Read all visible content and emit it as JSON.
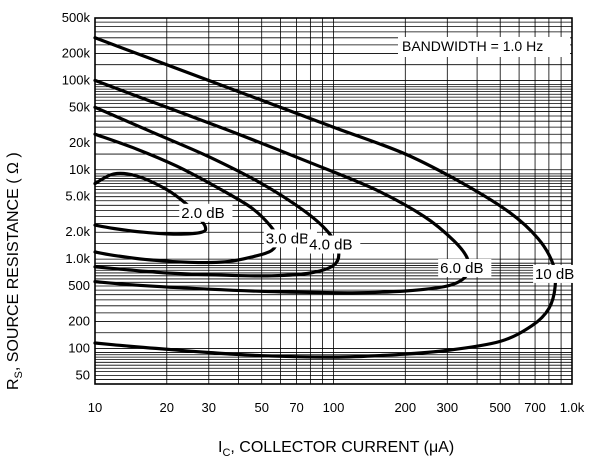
{
  "chart_data": {
    "type": "line",
    "x_scale": "log",
    "y_scale": "log",
    "xlim": [
      10,
      1000
    ],
    "ylim": [
      40,
      500000
    ],
    "grid": true,
    "annotation": "BANDWIDTH = 1.0 Hz",
    "xlabel_main": "I",
    "xlabel_sub": "C",
    "xlabel_rest": ", COLLECTOR CURRENT (μA)",
    "ylabel_main": "R",
    "ylabel_sub": "S",
    "ylabel_rest": ", SOURCE RESISTANCE ( Ω )",
    "x_ticks": [
      {
        "value": 10,
        "label": "10"
      },
      {
        "value": 20,
        "label": "20"
      },
      {
        "value": 30,
        "label": "30"
      },
      {
        "value": 50,
        "label": "50"
      },
      {
        "value": 70,
        "label": "70"
      },
      {
        "value": 100,
        "label": "100"
      },
      {
        "value": 200,
        "label": "200"
      },
      {
        "value": 300,
        "label": "300"
      },
      {
        "value": 500,
        "label": "500"
      },
      {
        "value": 700,
        "label": "700"
      },
      {
        "value": 1000,
        "label": "1.0k"
      }
    ],
    "y_ticks": [
      {
        "value": 50,
        "label": "50"
      },
      {
        "value": 100,
        "label": "100"
      },
      {
        "value": 200,
        "label": "200"
      },
      {
        "value": 500,
        "label": "500"
      },
      {
        "value": 1000,
        "label": "1.0k"
      },
      {
        "value": 2000,
        "label": "2.0k"
      },
      {
        "value": 5000,
        "label": "5.0k"
      },
      {
        "value": 10000,
        "label": "10k"
      },
      {
        "value": 20000,
        "label": "20k"
      },
      {
        "value": 50000,
        "label": "50k"
      },
      {
        "value": 100000,
        "label": "100k"
      },
      {
        "value": 200000,
        "label": "200k"
      },
      {
        "value": 500000,
        "label": "500k"
      }
    ],
    "series": [
      {
        "name": "2.0 dB",
        "points": [
          [
            10,
            7000
          ],
          [
            12,
            9000
          ],
          [
            15,
            8500
          ],
          [
            20,
            6000
          ],
          [
            24,
            4200
          ],
          [
            27,
            3000
          ],
          [
            29,
            2300
          ],
          [
            28,
            2000
          ],
          [
            22,
            1900
          ],
          [
            16,
            2000
          ],
          [
            12,
            2200
          ],
          [
            10,
            2400
          ]
        ]
      },
      {
        "name": "3.0 dB",
        "points": [
          [
            10,
            25000
          ],
          [
            15,
            17000
          ],
          [
            22,
            11000
          ],
          [
            32,
            6500
          ],
          [
            45,
            3800
          ],
          [
            54,
            2400
          ],
          [
            58,
            1700
          ],
          [
            55,
            1250
          ],
          [
            45,
            1050
          ],
          [
            35,
            930
          ],
          [
            25,
            920
          ],
          [
            17,
            980
          ],
          [
            12,
            1100
          ],
          [
            10,
            1200
          ]
        ]
      },
      {
        "name": "4.0 dB",
        "points": [
          [
            10,
            50000
          ],
          [
            17,
            27000
          ],
          [
            30,
            14000
          ],
          [
            50,
            7000
          ],
          [
            75,
            3500
          ],
          [
            95,
            2000
          ],
          [
            105,
            1200
          ],
          [
            100,
            850
          ],
          [
            80,
            700
          ],
          [
            55,
            650
          ],
          [
            35,
            660
          ],
          [
            20,
            700
          ],
          [
            13,
            770
          ],
          [
            10,
            820
          ]
        ]
      },
      {
        "name": "6.0 dB",
        "points": [
          [
            10,
            100000
          ],
          [
            20,
            50000
          ],
          [
            40,
            25000
          ],
          [
            80,
            12000
          ],
          [
            150,
            6000
          ],
          [
            240,
            3000
          ],
          [
            320,
            1600
          ],
          [
            365,
            1000
          ],
          [
            360,
            650
          ],
          [
            300,
            500
          ],
          [
            200,
            440
          ],
          [
            120,
            420
          ],
          [
            60,
            430
          ],
          [
            30,
            460
          ],
          [
            15,
            510
          ],
          [
            10,
            560
          ]
        ]
      },
      {
        "name": "10 dB",
        "points": [
          [
            10,
            300000
          ],
          [
            20,
            150000
          ],
          [
            50,
            60000
          ],
          [
            100,
            30000
          ],
          [
            200,
            15000
          ],
          [
            350,
            7000
          ],
          [
            550,
            3300
          ],
          [
            720,
            1700
          ],
          [
            830,
            900
          ],
          [
            850,
            500
          ],
          [
            800,
            280
          ],
          [
            680,
            180
          ],
          [
            500,
            120
          ],
          [
            300,
            95
          ],
          [
            180,
            85
          ],
          [
            100,
            80
          ],
          [
            50,
            83
          ],
          [
            30,
            90
          ],
          [
            18,
            100
          ],
          [
            12,
            110
          ],
          [
            10,
            115
          ]
        ]
      }
    ],
    "curve_labels": [
      {
        "text": "2.0 dB",
        "x": 23,
        "y": 2900
      },
      {
        "text": "3.0 dB",
        "x": 52,
        "y": 1500
      },
      {
        "text": "4.0 dB",
        "x": 79,
        "y": 1280
      },
      {
        "text": "6.0 dB",
        "x": 280,
        "y": 700
      },
      {
        "text": "10 dB",
        "x": 700,
        "y": 600
      }
    ]
  }
}
